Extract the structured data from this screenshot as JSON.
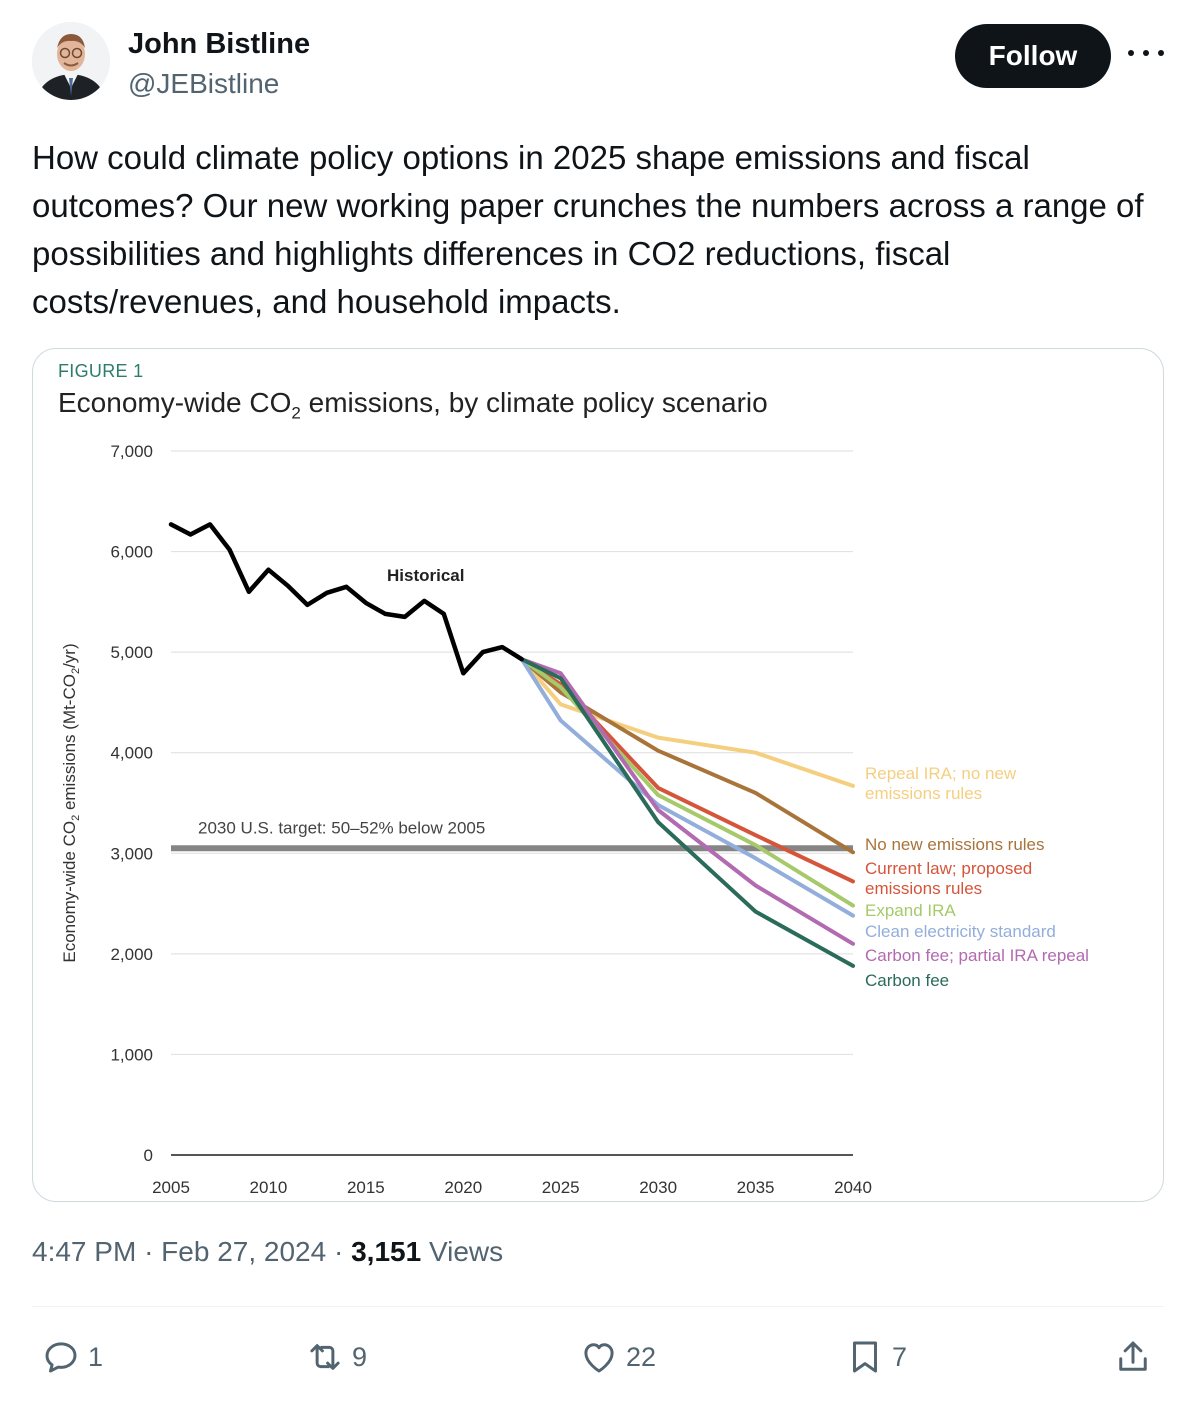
{
  "author": {
    "name": "John Bistline",
    "handle": "@JEBistline",
    "follow_label": "Follow"
  },
  "tweet": {
    "text": "How could climate policy options in 2025 shape emissions and fiscal outcomes? Our new working paper crunches the numbers across a range of possibilities and highlights differences in CO2 reductions, fiscal costs/revenues, and household impacts.",
    "time": "4:47 PM",
    "date": "Feb 27, 2024",
    "sep": "·",
    "views_count": "3,151",
    "views_label": "Views"
  },
  "actions": {
    "replies": "1",
    "reposts": "9",
    "likes": "22",
    "bookmarks": "7"
  },
  "figure": {
    "label": "FIGURE 1",
    "title_pre": "Economy-wide CO",
    "title_sub": "2",
    "title_post": " emissions, by climate policy scenario"
  },
  "colors": {
    "historical": "#000000",
    "repeal_ira": "#f5cf80",
    "no_new_rules": "#a8743a",
    "current_law": "#d5553a",
    "expand_ira": "#a6c96a",
    "clean_electricity": "#93aedb",
    "carbon_fee_partial": "#b26ab0",
    "carbon_fee": "#2b6b5a",
    "target": "#858585"
  },
  "chart_data": {
    "type": "line",
    "title": "Economy-wide CO2 emissions, by climate policy scenario",
    "ylabel": "Economy-wide CO2 emissions (Mt-CO2/yr)",
    "xlabel": "",
    "xlim": [
      2005,
      2040
    ],
    "ylim": [
      0,
      7000
    ],
    "x_ticks": [
      "2005",
      "2010",
      "2015",
      "2020",
      "2025",
      "2030",
      "2035",
      "2040"
    ],
    "y_ticks": [
      "0",
      "1,000",
      "2,000",
      "3,000",
      "4,000",
      "5,000",
      "6,000",
      "7,000"
    ],
    "grid": true,
    "annotations": {
      "historical_label": "Historical",
      "target_label": "2030 U.S. target: 50–52% below 2005",
      "target_value": 3050
    },
    "series": [
      {
        "name": "Historical",
        "key": "historical",
        "x": [
          2005,
          2006,
          2007,
          2008,
          2009,
          2010,
          2011,
          2012,
          2013,
          2014,
          2015,
          2016,
          2017,
          2018,
          2019,
          2020,
          2021,
          2022,
          2023
        ],
        "values": [
          6270,
          6170,
          6270,
          6020,
          5600,
          5820,
          5660,
          5470,
          5590,
          5650,
          5490,
          5380,
          5350,
          5510,
          5380,
          4790,
          5000,
          5050,
          4930
        ]
      },
      {
        "name": "Repeal IRA; no new emissions rules",
        "key": "repeal_ira",
        "x": [
          2023,
          2025,
          2030,
          2035,
          2040
        ],
        "values": [
          4930,
          4480,
          4150,
          4000,
          3670
        ]
      },
      {
        "name": "No new emissions rules",
        "key": "no_new_rules",
        "x": [
          2023,
          2025,
          2030,
          2035,
          2040
        ],
        "values": [
          4930,
          4600,
          4020,
          3600,
          3010
        ]
      },
      {
        "name": "Current law; proposed emissions rules",
        "key": "current_law",
        "x": [
          2023,
          2025,
          2030,
          2035,
          2040
        ],
        "values": [
          4930,
          4680,
          3650,
          3180,
          2720
        ]
      },
      {
        "name": "Expand IRA",
        "key": "expand_ira",
        "x": [
          2023,
          2025,
          2030,
          2035,
          2040
        ],
        "values": [
          4930,
          4650,
          3580,
          3080,
          2480
        ]
      },
      {
        "name": "Clean electricity standard",
        "key": "clean_electricity",
        "x": [
          2023,
          2025,
          2030,
          2035,
          2040
        ],
        "values": [
          4930,
          4320,
          3480,
          2950,
          2380
        ]
      },
      {
        "name": "Carbon fee; partial IRA repeal",
        "key": "carbon_fee_partial",
        "x": [
          2023,
          2025,
          2030,
          2035,
          2040
        ],
        "values": [
          4930,
          4790,
          3430,
          2680,
          2100
        ]
      },
      {
        "name": "Carbon fee",
        "key": "carbon_fee",
        "x": [
          2023,
          2025,
          2030,
          2035,
          2040
        ],
        "values": [
          4930,
          4740,
          3310,
          2420,
          1880
        ]
      }
    ],
    "legend": [
      {
        "key": "repeal_ira",
        "lines": [
          "Repeal IRA; no new",
          "emissions rules"
        ]
      },
      {
        "key": "no_new_rules",
        "lines": [
          "No new emissions rules"
        ]
      },
      {
        "key": "current_law",
        "lines": [
          "Current law; proposed",
          "emissions rules"
        ]
      },
      {
        "key": "expand_ira",
        "lines": [
          "Expand IRA"
        ]
      },
      {
        "key": "clean_electricity",
        "lines": [
          "Clean electricity standard"
        ]
      },
      {
        "key": "carbon_fee_partial",
        "lines": [
          "Carbon fee; partial IRA repeal"
        ]
      },
      {
        "key": "carbon_fee",
        "lines": [
          "Carbon fee"
        ]
      }
    ]
  }
}
